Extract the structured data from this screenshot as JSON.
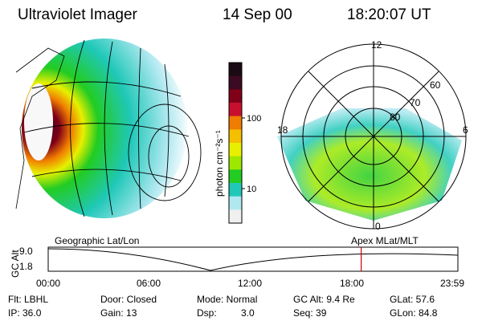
{
  "header": {
    "title": "Ultraviolet Imager",
    "date": "14 Sep 00",
    "time": "18:20:07 UT"
  },
  "colorbar": {
    "unit_label": "photon cm⁻²s⁻¹",
    "ticks": [
      "100",
      "10"
    ],
    "colors": [
      "#1a0a14",
      "#3c0a22",
      "#800018",
      "#c8102e",
      "#f07c00",
      "#f5c000",
      "#e8f000",
      "#9ee800",
      "#22cc22",
      "#20c8b8",
      "#b0e8f0",
      "#f0f0f0"
    ]
  },
  "polar": {
    "labels": {
      "top": "12",
      "left": "18",
      "right": "6",
      "bottom": "0",
      "lat60": "60",
      "lat70": "70",
      "lat80": "80"
    }
  },
  "panels": {
    "left_caption": "Geographic Lat/Lon",
    "right_caption": "Apex  MLat/MLT"
  },
  "timeline": {
    "axis_label": "GC Alt",
    "y_top": "9.0",
    "y_bottom": "1.8",
    "x_ticks": [
      "00:00",
      "06:00",
      "12:00",
      "18:00",
      "23:59"
    ],
    "marker_time_fraction": 0.764,
    "marker_color": "#cc0000"
  },
  "status": {
    "flt": "Flt: LBHL",
    "ip": "IP: 36.0",
    "door": "Door: Closed",
    "gain": "Gain: 13",
    "mode": "Mode: Normal",
    "dsp_label": "Dsp:",
    "dsp_value": "3.0",
    "gcalt": "GC Alt: 9.4 Re",
    "seq": "Seq: 39",
    "glat": "GLat:  57.6",
    "glon": "GLon:  84.8"
  }
}
